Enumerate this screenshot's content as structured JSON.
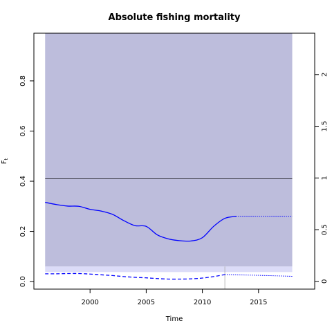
{
  "chart_data": {
    "type": "line",
    "title": "Absolute fishing mortality",
    "xlabel": "Time",
    "ylabel": "F",
    "ylabel_subscript": "t",
    "xlim": [
      1995.0,
      2020.0
    ],
    "ylim": [
      -0.03,
      0.99
    ],
    "y2lim": [
      -0.075,
      2.4
    ],
    "x_ticks": [
      2000,
      2005,
      2010,
      2015
    ],
    "y_ticks": [
      0.0,
      0.2,
      0.4,
      0.6,
      0.8
    ],
    "y2_ticks": [
      0,
      0.5,
      1,
      1.5,
      2
    ],
    "x_tick_labels": [
      "2000",
      "2005",
      "2010",
      "2015"
    ],
    "y_tick_labels": [
      "0.0",
      "0.2",
      "0.4",
      "0.6",
      "0.8"
    ],
    "y2_tick_labels": [
      "0",
      "0.5",
      "1",
      "1.5",
      "2"
    ],
    "grid": false,
    "colors": {
      "ci_band": "#bdbddc",
      "lower_band": "#dcdcf8",
      "line": "#0000ff",
      "reference": "#000000",
      "marker": "#aaaaaa"
    },
    "ci_band": {
      "x": [
        1996,
        2018
      ],
      "lower": 0.06,
      "upper": 0.99
    },
    "lower_band": {
      "x": [
        1996,
        2018
      ],
      "lower": 0.038,
      "upper": 0.06
    },
    "reference_line": {
      "y": 0.41,
      "x": [
        1996,
        2018
      ]
    },
    "vertical_marker": {
      "x": 2012
    },
    "series": [
      {
        "style": "solid",
        "x": [
          1996,
          1997,
          1998,
          1999,
          2000,
          2001,
          2002,
          2003,
          2004,
          2005,
          2006,
          2007,
          2008,
          2009,
          2010,
          2011,
          2012,
          2013
        ],
        "values": [
          0.316,
          0.307,
          0.301,
          0.3,
          0.288,
          0.281,
          0.268,
          0.243,
          0.223,
          0.22,
          0.186,
          0.17,
          0.163,
          0.162,
          0.175,
          0.22,
          0.252,
          0.26
        ]
      },
      {
        "style": "dotted",
        "x": [
          2013,
          2018
        ],
        "values": [
          0.26,
          0.26
        ]
      },
      {
        "style": "dashed",
        "x": [
          1996,
          1997,
          1998,
          1999,
          2000,
          2001,
          2002,
          2003,
          2004,
          2005,
          2006,
          2007,
          2008,
          2009,
          2010,
          2011,
          2012
        ],
        "values": [
          0.031,
          0.031,
          0.032,
          0.032,
          0.03,
          0.027,
          0.024,
          0.02,
          0.017,
          0.015,
          0.012,
          0.01,
          0.01,
          0.011,
          0.014,
          0.02,
          0.028
        ]
      },
      {
        "style": "dotted",
        "x": [
          2012,
          2015,
          2018
        ],
        "values": [
          0.028,
          0.025,
          0.021
        ]
      }
    ]
  }
}
